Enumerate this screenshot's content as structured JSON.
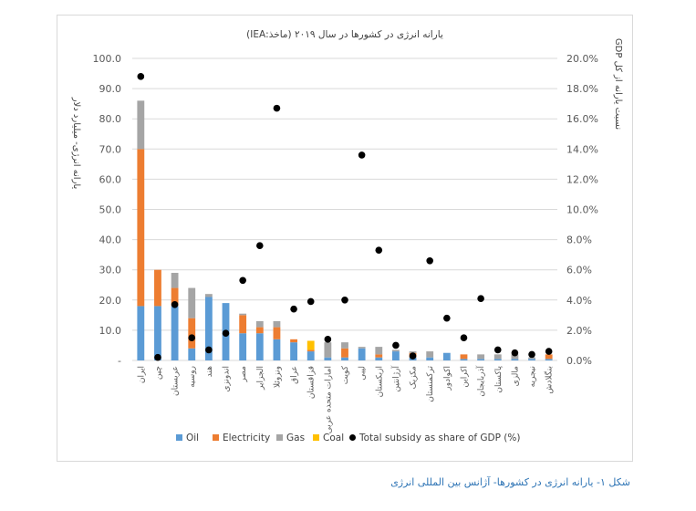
{
  "chart_data": {
    "type": "bar",
    "stacked": true,
    "title": "یارانه انرژی در کشورها در سال ۲۰۱۹ (ماخذ:IEA)",
    "ylabel_left": "یارانه انرژی- میلیارد دلار",
    "ylabel_right": "نسبت یارانه از کل GDP",
    "y_left_ticks": [
      "-",
      "10.0",
      "20.0",
      "30.0",
      "40.0",
      "50.0",
      "60.0",
      "70.0",
      "80.0",
      "90.0",
      "100.0"
    ],
    "y_right_ticks": [
      "0.0%",
      "2.0%",
      "4.0%",
      "6.0%",
      "8.0%",
      "10.0%",
      "12.0%",
      "14.0%",
      "16.0%",
      "18.0%",
      "20.0%"
    ],
    "ylim_left": [
      0,
      100
    ],
    "ylim_right": [
      0,
      20
    ],
    "grid": true,
    "legend_position": "bottom",
    "categories": [
      "ایران",
      "چین",
      "عربستان",
      "روسیه",
      "هند",
      "اندونزی",
      "مصر",
      "الجزایر",
      "ونزوئلا",
      "عراق",
      "قزاقستان",
      "امارات متحده عربی",
      "کویت",
      "لیبی",
      "ازبکستان",
      "آرژانتین",
      "مکزیک",
      "ترکمنستان",
      "اکوادور",
      "اکراین",
      "آذربایجان",
      "پاکستان",
      "مالزی",
      "نیجریه",
      "بنگلادش"
    ],
    "series": [
      {
        "name": "Oil",
        "color": "#5b9bd5",
        "values": [
          18,
          18,
          18,
          4,
          21,
          19,
          9,
          9,
          7,
          6,
          3,
          1,
          1,
          4,
          1,
          3,
          1,
          1,
          2.5,
          0.5,
          0.5,
          0.5,
          0.5,
          0.5,
          0.5
        ]
      },
      {
        "name": "Electricity",
        "color": "#ed7d31",
        "values": [
          52,
          12,
          6,
          10,
          0,
          0,
          6,
          2,
          4,
          1,
          0.5,
          0,
          3,
          0,
          1,
          0,
          1.5,
          0,
          0,
          1.5,
          0,
          0,
          0,
          0,
          1.5
        ]
      },
      {
        "name": "Gas",
        "color": "#a5a5a5",
        "values": [
          16,
          0,
          5,
          10,
          1,
          0,
          0.5,
          2,
          2,
          0,
          0,
          5,
          2,
          0.5,
          2.5,
          0.5,
          0.5,
          2,
          0,
          0,
          1.5,
          1.5,
          1.5,
          0.5,
          0
        ]
      },
      {
        "name": "Coal",
        "color": "#ffc000",
        "values": [
          0,
          0,
          0,
          0,
          0,
          0,
          0,
          0,
          0,
          0,
          3,
          0,
          0,
          0,
          0,
          0,
          0,
          0,
          0,
          0,
          0,
          0,
          0,
          0,
          0
        ]
      }
    ],
    "scatter_series": {
      "name": "Total subsidy as share of GDP (%)",
      "color": "#000000",
      "values": [
        18.8,
        0.2,
        3.7,
        1.5,
        0.7,
        1.8,
        5.3,
        7.6,
        16.7,
        3.4,
        3.9,
        1.4,
        4.0,
        13.6,
        7.3,
        1.0,
        0.3,
        6.6,
        2.8,
        1.5,
        4.1,
        0.7,
        0.5,
        0.4,
        0.6
      ]
    }
  },
  "caption": "شکل ۱- یارانه انرژی در کشورها- آژانس بین المللی انرژی"
}
